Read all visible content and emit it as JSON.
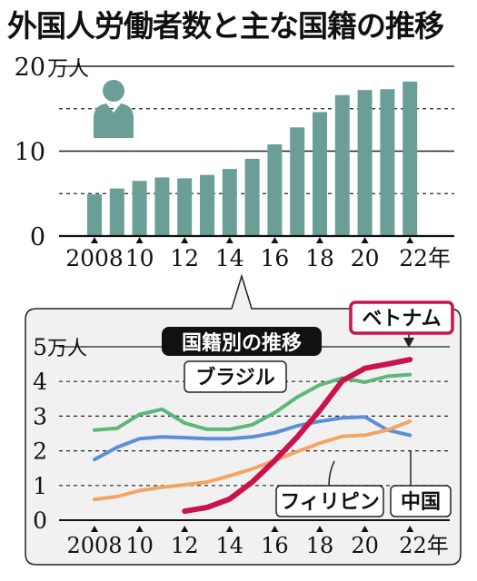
{
  "title": "外国人労働者数と主な国籍の推移",
  "colors": {
    "bar": "#6c9e98",
    "inset_bg": "#f1f1f1",
    "grid": "#222222"
  },
  "icon": "person-icon",
  "chart_data": [
    {
      "type": "bar",
      "title": "外国人労働者数と主な国籍の推移",
      "y_unit": "万人",
      "ylim": [
        0,
        20
      ],
      "yticks": [
        0,
        10,
        20
      ],
      "grid": "dashed at 5 and 15, solid at 10 and 20",
      "categories": [
        "2008",
        "2009",
        "2010",
        "2011",
        "2012",
        "2013",
        "2014",
        "2015",
        "2016",
        "2017",
        "2018",
        "2019",
        "2020",
        "2021",
        "2022"
      ],
      "x_tick_labels": [
        "2008",
        "10",
        "12",
        "14",
        "16",
        "18",
        "20",
        "22年"
      ],
      "values": [
        4.9,
        5.6,
        6.5,
        6.9,
        6.8,
        7.2,
        7.9,
        9.1,
        10.8,
        12.8,
        14.6,
        16.6,
        17.2,
        17.3,
        18.2
      ]
    },
    {
      "type": "line",
      "title": "国籍別の推移",
      "y_unit": "万人",
      "ylim": [
        0,
        5
      ],
      "yticks": [
        0,
        1,
        2,
        3,
        4,
        5
      ],
      "x": [
        2008,
        2009,
        2010,
        2011,
        2012,
        2013,
        2014,
        2015,
        2016,
        2017,
        2018,
        2019,
        2020,
        2021,
        2022
      ],
      "x_tick_labels": [
        "2008",
        "10",
        "12",
        "14",
        "16",
        "18",
        "20",
        "22年"
      ],
      "series": [
        {
          "name": "ベトナム",
          "color": "#c8144b",
          "values": [
            null,
            null,
            null,
            null,
            0.26,
            0.37,
            0.61,
            1.1,
            1.72,
            2.4,
            3.17,
            4.02,
            4.38,
            4.5,
            4.63
          ]
        },
        {
          "name": "ブラジル",
          "color": "#5cb878",
          "values": [
            2.6,
            2.65,
            3.05,
            3.2,
            2.8,
            2.62,
            2.62,
            2.75,
            3.1,
            3.55,
            3.9,
            4.1,
            3.98,
            4.15,
            4.2
          ]
        },
        {
          "name": "中国",
          "color": "#5b8fd8",
          "values": [
            1.75,
            2.1,
            2.35,
            2.4,
            2.38,
            2.35,
            2.35,
            2.4,
            2.52,
            2.72,
            2.85,
            2.95,
            2.98,
            2.6,
            2.45
          ]
        },
        {
          "name": "フィリピン",
          "color": "#f2a565",
          "values": [
            0.6,
            0.68,
            0.85,
            0.95,
            1.02,
            1.1,
            1.28,
            1.48,
            1.72,
            1.98,
            2.22,
            2.42,
            2.45,
            2.6,
            2.85
          ]
        }
      ]
    }
  ]
}
